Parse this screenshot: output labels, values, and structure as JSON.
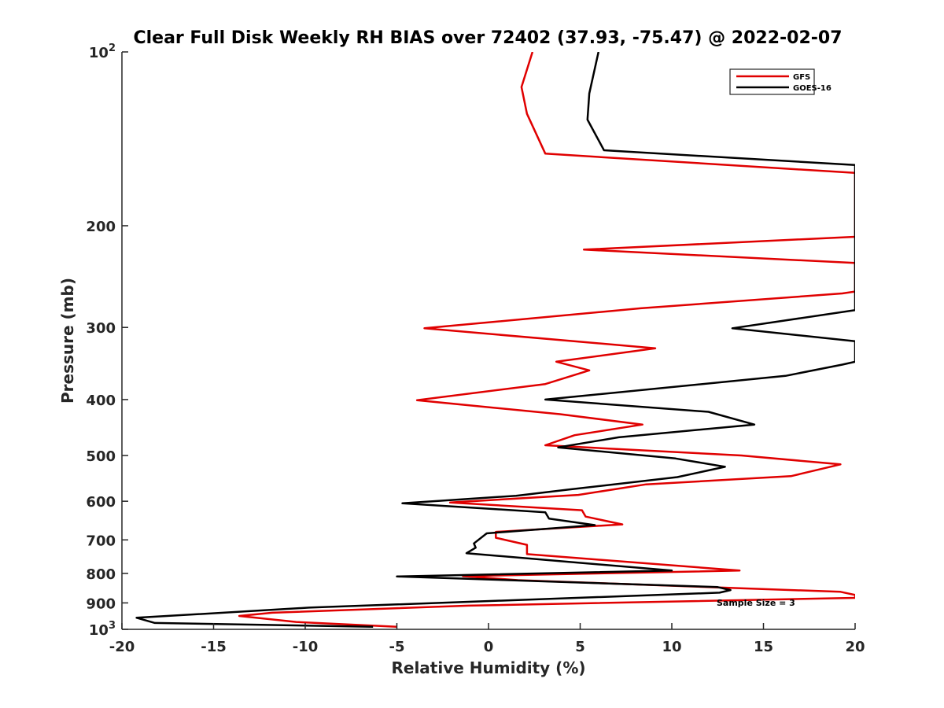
{
  "chart_data": {
    "type": "line",
    "title": "Clear Full Disk Weekly RH BIAS over 72402 (37.93, -75.47) @ 2022-02-07",
    "xlabel": "Relative Humidity (%)",
    "ylabel": "Pressure (mb)",
    "xlim": [
      -20,
      20
    ],
    "ylim": [
      100,
      1000
    ],
    "yscale": "log",
    "y_reversed": true,
    "x_ticks": [
      -20,
      -15,
      -10,
      -5,
      0,
      5,
      10,
      15,
      20
    ],
    "x_tick_labels": [
      "-20",
      "-15",
      "-10",
      "-5",
      "0",
      "5",
      "10",
      "15",
      "20"
    ],
    "y_ticks": [
      200,
      300,
      400,
      500,
      600,
      700,
      800,
      900
    ],
    "y_tick_labels": [
      "200",
      "300",
      "400",
      "500",
      "600",
      "700",
      "800",
      "900"
    ],
    "y_end_labels": [
      {
        "value": 100,
        "base": "10",
        "exp": "2"
      },
      {
        "value": 1000,
        "base": "10",
        "exp": "3"
      }
    ],
    "grid": false,
    "legend_position": "top-right",
    "annotation": "Sample Size = 3",
    "series": [
      {
        "name": "GFS",
        "color": "#e00000",
        "points": [
          [
            2.4,
            100
          ],
          [
            1.8,
            115
          ],
          [
            2.1,
            128
          ],
          [
            3.1,
            150
          ],
          [
            20,
            162
          ],
          [
            20,
            209
          ],
          [
            5.2,
            220
          ],
          [
            20,
            232
          ],
          [
            20,
            260
          ],
          [
            19.3,
            262
          ],
          [
            8.3,
            278
          ],
          [
            -3.5,
            301
          ],
          [
            9.1,
            326
          ],
          [
            3.7,
            344
          ],
          [
            5.5,
            356
          ],
          [
            3.1,
            376
          ],
          [
            -3.9,
            401
          ],
          [
            3.9,
            424
          ],
          [
            8.4,
            442
          ],
          [
            4.7,
            461
          ],
          [
            3.1,
            480
          ],
          [
            13.8,
            500
          ],
          [
            19.2,
            518
          ],
          [
            16.5,
            543
          ],
          [
            8.6,
            561
          ],
          [
            4.9,
            585
          ],
          [
            -2.1,
            603
          ],
          [
            5.1,
            622
          ],
          [
            5.3,
            638
          ],
          [
            7.3,
            658
          ],
          [
            0.4,
            678
          ],
          [
            0.4,
            694
          ],
          [
            2.1,
            714
          ],
          [
            2.1,
            741
          ],
          [
            13.7,
            791
          ],
          [
            -1.4,
            809
          ],
          [
            1.6,
            822
          ],
          [
            19.2,
            861
          ],
          [
            20,
            872
          ],
          [
            20,
            882
          ],
          [
            -1.1,
            910
          ],
          [
            -11.8,
            936
          ],
          [
            -13.6,
            948
          ],
          [
            -10.5,
            971
          ],
          [
            -5,
            990
          ]
        ]
      },
      {
        "name": "GOES-16",
        "color": "#000000",
        "points": [
          [
            6.0,
            100
          ],
          [
            5.5,
            118
          ],
          [
            5.4,
            131
          ],
          [
            6.3,
            148
          ],
          [
            20,
            157
          ],
          [
            20,
            280
          ],
          [
            13.3,
            301
          ],
          [
            20,
            317
          ],
          [
            20,
            344
          ],
          [
            19.3,
            348
          ],
          [
            16.2,
            364
          ],
          [
            3.1,
            400
          ],
          [
            12.0,
            420
          ],
          [
            14.5,
            442
          ],
          [
            7.1,
            465
          ],
          [
            3.8,
            484
          ],
          [
            10.2,
            506
          ],
          [
            12.9,
            523
          ],
          [
            10.3,
            545
          ],
          [
            4.3,
            573
          ],
          [
            1.5,
            587
          ],
          [
            -4.7,
            605
          ],
          [
            3.1,
            627
          ],
          [
            3.3,
            643
          ],
          [
            5.8,
            660
          ],
          [
            -0.1,
            682
          ],
          [
            -0.8,
            710
          ],
          [
            -0.7,
            722
          ],
          [
            -1.2,
            738
          ],
          [
            10.0,
            791
          ],
          [
            -5.0,
            810
          ],
          [
            12.5,
            845
          ],
          [
            13.2,
            855
          ],
          [
            12.6,
            864
          ],
          [
            -9.8,
            917
          ],
          [
            -19.2,
            955
          ],
          [
            -18.2,
            975
          ],
          [
            -6.3,
            990
          ]
        ]
      }
    ]
  }
}
